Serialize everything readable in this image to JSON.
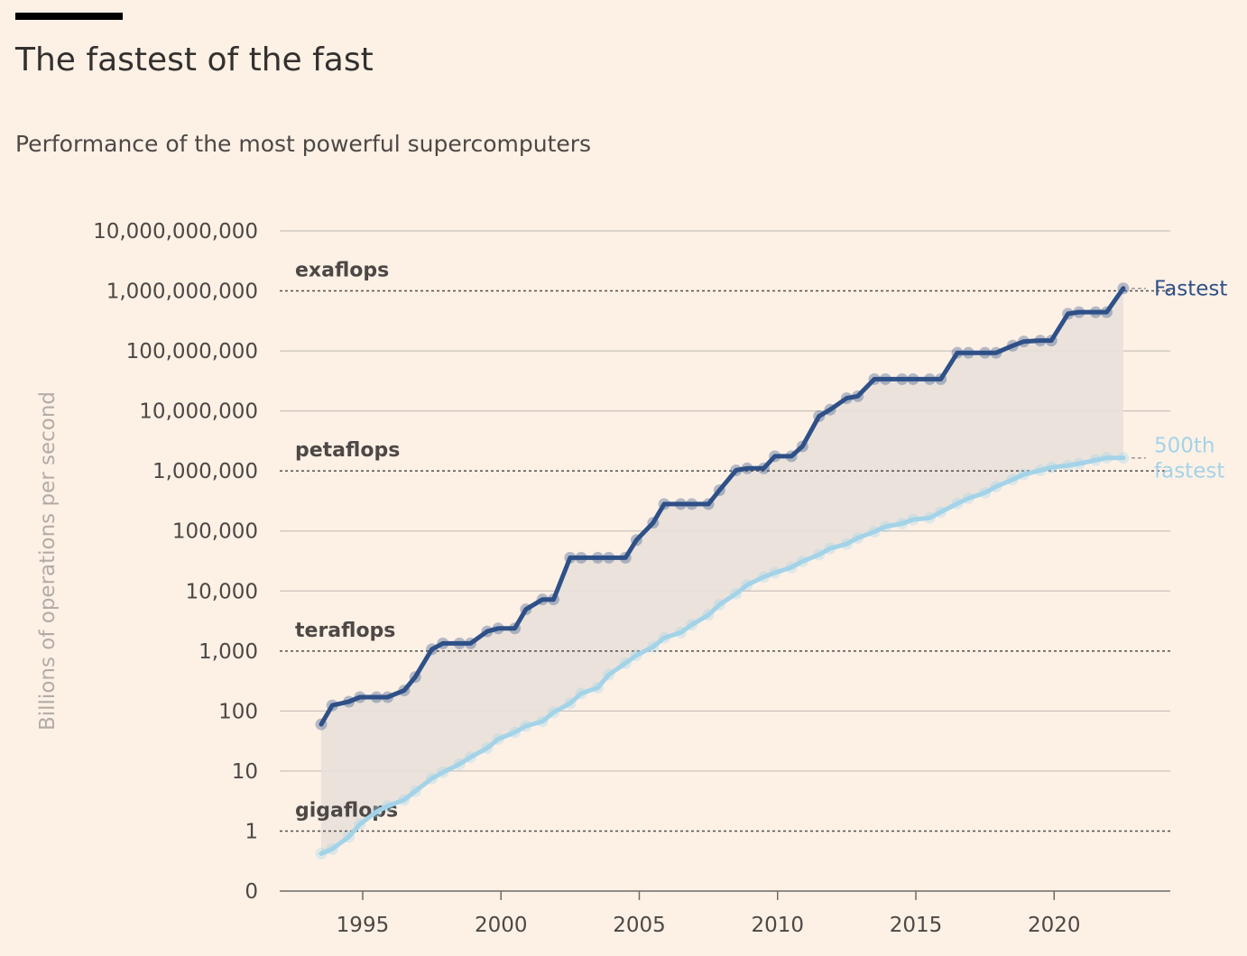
{
  "title": "The fastest of the fast",
  "subtitle": "Performance of the most powerful supercomputers",
  "chart_data": {
    "type": "line",
    "ylabel": "Billions of operations per second",
    "yscale": "log",
    "y_ticks": [
      {
        "value": 0.1,
        "label": "0"
      },
      {
        "value": 1,
        "label": "1"
      },
      {
        "value": 10,
        "label": "10"
      },
      {
        "value": 100,
        "label": "100"
      },
      {
        "value": 1000,
        "label": "1,000"
      },
      {
        "value": 10000,
        "label": "10,000"
      },
      {
        "value": 100000,
        "label": "100,000"
      },
      {
        "value": 1000000,
        "label": "1,000,000"
      },
      {
        "value": 10000000,
        "label": "10,000,000"
      },
      {
        "value": 100000000,
        "label": "100,000,000"
      },
      {
        "value": 1000000000,
        "label": "1,000,000,000"
      },
      {
        "value": 10000000000,
        "label": "10,000,000,000"
      }
    ],
    "x_ticks": [
      1995,
      2000,
      2005,
      2010,
      2015,
      2020
    ],
    "xlim": [
      1992,
      2024.2
    ],
    "ylim": [
      0.1,
      10000000000
    ],
    "thresholds": [
      {
        "value": 1,
        "label": "gigaflops"
      },
      {
        "value": 1000,
        "label": "teraflops"
      },
      {
        "value": 1000000,
        "label": "petaflops"
      },
      {
        "value": 1000000000,
        "label": "exaflops"
      }
    ],
    "colors": {
      "fastest": "#2f5088",
      "fastest_500th": "#a4d3e8",
      "fill": "#e8e0d9",
      "grid": "#c9c2bb",
      "threshold": "#55514d"
    },
    "series": [
      {
        "name": "Fastest",
        "x": [
          1993.5,
          1993.9,
          1994.5,
          1994.9,
          1995.5,
          1995.9,
          1996.5,
          1996.9,
          1997.5,
          1997.9,
          1998.5,
          1998.9,
          1999.5,
          1999.9,
          2000.5,
          2000.9,
          2001.5,
          2001.9,
          2002.5,
          2002.9,
          2003.5,
          2003.9,
          2004.5,
          2004.9,
          2005.5,
          2005.9,
          2006.5,
          2006.9,
          2007.5,
          2007.9,
          2008.5,
          2008.9,
          2009.5,
          2009.9,
          2010.5,
          2010.9,
          2011.5,
          2011.9,
          2012.5,
          2012.9,
          2013.5,
          2013.9,
          2014.5,
          2014.9,
          2015.5,
          2015.9,
          2016.5,
          2016.9,
          2017.5,
          2017.9,
          2018.5,
          2018.9,
          2019.5,
          2019.9,
          2020.5,
          2020.9,
          2021.5,
          2021.9,
          2022.5
        ],
        "y": [
          60,
          124,
          143,
          170,
          170,
          170,
          220,
          368,
          1068,
          1338,
          1338,
          1338,
          2121,
          2379,
          2379,
          4938,
          7226,
          7226,
          35860,
          35860,
          35860,
          35860,
          35860,
          70720,
          136800,
          280600,
          280600,
          280600,
          280600,
          478200,
          1026000,
          1105000,
          1105000,
          1759000,
          1759000,
          2566000,
          8162000,
          10510000,
          16320000,
          17590000,
          33860000,
          33860000,
          33860000,
          33860000,
          33860000,
          33860000,
          93010000,
          93010000,
          93010000,
          93010000,
          122300000,
          143500000,
          148600000,
          148600000,
          415500000,
          442000000,
          442000000,
          442000000,
          1102000000
        ]
      },
      {
        "name": "500th fastest",
        "x": [
          1993.5,
          1993.9,
          1994.5,
          1994.9,
          1995.5,
          1995.9,
          1996.5,
          1996.9,
          1997.5,
          1997.9,
          1998.5,
          1998.9,
          1999.5,
          1999.9,
          2000.5,
          2000.9,
          2001.5,
          2001.9,
          2002.5,
          2002.9,
          2003.5,
          2003.9,
          2004.5,
          2004.9,
          2005.5,
          2005.9,
          2006.5,
          2006.9,
          2007.5,
          2007.9,
          2008.5,
          2008.9,
          2009.5,
          2009.9,
          2010.5,
          2010.9,
          2011.5,
          2011.9,
          2012.5,
          2012.9,
          2013.5,
          2013.9,
          2014.5,
          2014.9,
          2015.5,
          2015.9,
          2016.5,
          2016.9,
          2017.5,
          2017.9,
          2018.5,
          2018.9,
          2019.5,
          2019.9,
          2020.5,
          2020.9,
          2021.5,
          2021.9,
          2022.5
        ],
        "y": [
          0.42,
          0.5,
          0.8,
          1.3,
          2.1,
          2.6,
          3.3,
          4.6,
          7.5,
          9.5,
          13,
          17,
          24,
          34,
          44,
          56,
          67,
          95,
          134,
          196,
          245,
          403,
          624,
          851,
          1170,
          1650,
          2030,
          2730,
          4000,
          5900,
          9000,
          12600,
          17100,
          20100,
          24700,
          31100,
          40200,
          51000,
          60800,
          76500,
          96600,
          118000,
          133000,
          154000,
          165000,
          206000,
          286000,
          349000,
          432000,
          548000,
          716000,
          873000,
          1022000,
          1142000,
          1230000,
          1320000,
          1510000,
          1650000,
          1650000
        ]
      }
    ],
    "series_labels": [
      {
        "series": "Fastest",
        "lines": [
          "Fastest"
        ]
      },
      {
        "series": "500th fastest",
        "lines": [
          "500th",
          "fastest"
        ]
      }
    ]
  }
}
